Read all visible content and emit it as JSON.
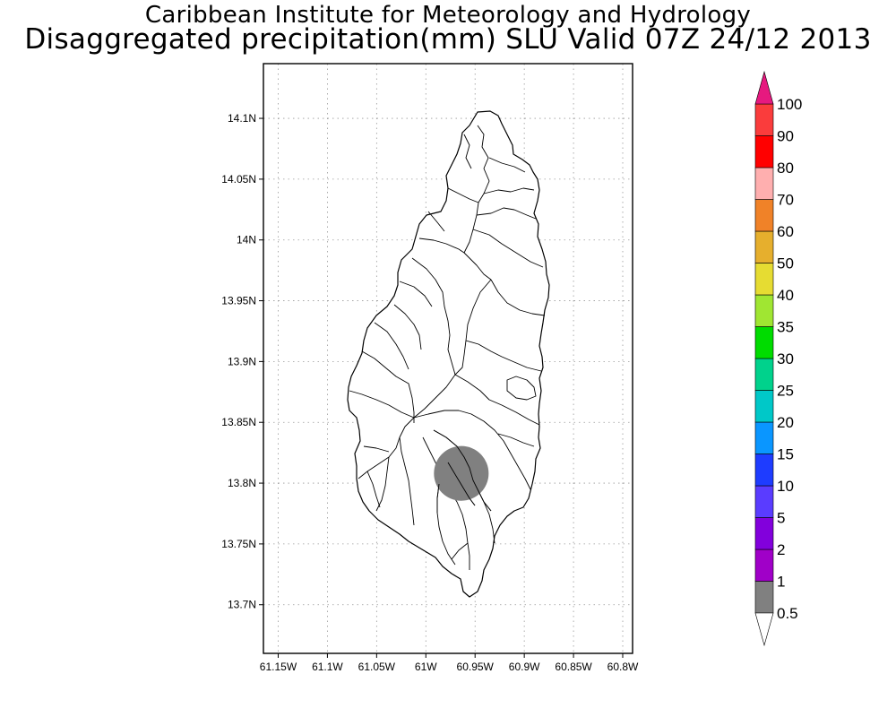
{
  "title": {
    "line1": "Caribbean Institute for Meteorology and Hydrology",
    "line2": "Disaggregated precipitation(mm) SLU Valid 07Z 24/12 2013"
  },
  "map": {
    "lon_range": [
      -61.165,
      -60.79
    ],
    "lat_range": [
      13.66,
      14.145
    ],
    "lat_ticks": [
      {
        "value": 14.1,
        "label": "14.1N"
      },
      {
        "value": 14.05,
        "label": "14.05N"
      },
      {
        "value": 14.0,
        "label": "14N"
      },
      {
        "value": 13.95,
        "label": "13.95N"
      },
      {
        "value": 13.9,
        "label": "13.9N"
      },
      {
        "value": 13.85,
        "label": "13.85N"
      },
      {
        "value": 13.8,
        "label": "13.8N"
      },
      {
        "value": 13.75,
        "label": "13.75N"
      },
      {
        "value": 13.7,
        "label": "13.7N"
      }
    ],
    "lon_ticks": [
      {
        "value": -61.15,
        "label": "61.15W"
      },
      {
        "value": -61.1,
        "label": "61.1W"
      },
      {
        "value": -61.05,
        "label": "61.05W"
      },
      {
        "value": -61.0,
        "label": "61W"
      },
      {
        "value": -60.95,
        "label": "60.95W"
      },
      {
        "value": -60.9,
        "label": "60.9W"
      },
      {
        "value": -60.85,
        "label": "60.85W"
      },
      {
        "value": -60.8,
        "label": "60.8W"
      }
    ],
    "grid": "dotted",
    "precip_areas": [
      {
        "center_lon": -60.964,
        "center_lat": 13.808,
        "radius_deg": 0.0225,
        "value_range": "0.5-1",
        "color": "#808080"
      }
    ]
  },
  "colorbar": {
    "labels": [
      "0.5",
      "1",
      "2",
      "5",
      "10",
      "15",
      "20",
      "25",
      "30",
      "35",
      "40",
      "50",
      "60",
      "70",
      "80",
      "90",
      "100"
    ],
    "colors": [
      "#808080",
      "#a000c8",
      "#8200dc",
      "#5a3cff",
      "#1e3cff",
      "#0a96ff",
      "#00c8c8",
      "#00d28c",
      "#00dc00",
      "#a0e632",
      "#e6dc32",
      "#e6af2d",
      "#f08228",
      "#ffafaf",
      "#ff0000",
      "#fa3c3c"
    ],
    "low_end_color": "#ffffff",
    "high_end_color": "#e6197f"
  }
}
